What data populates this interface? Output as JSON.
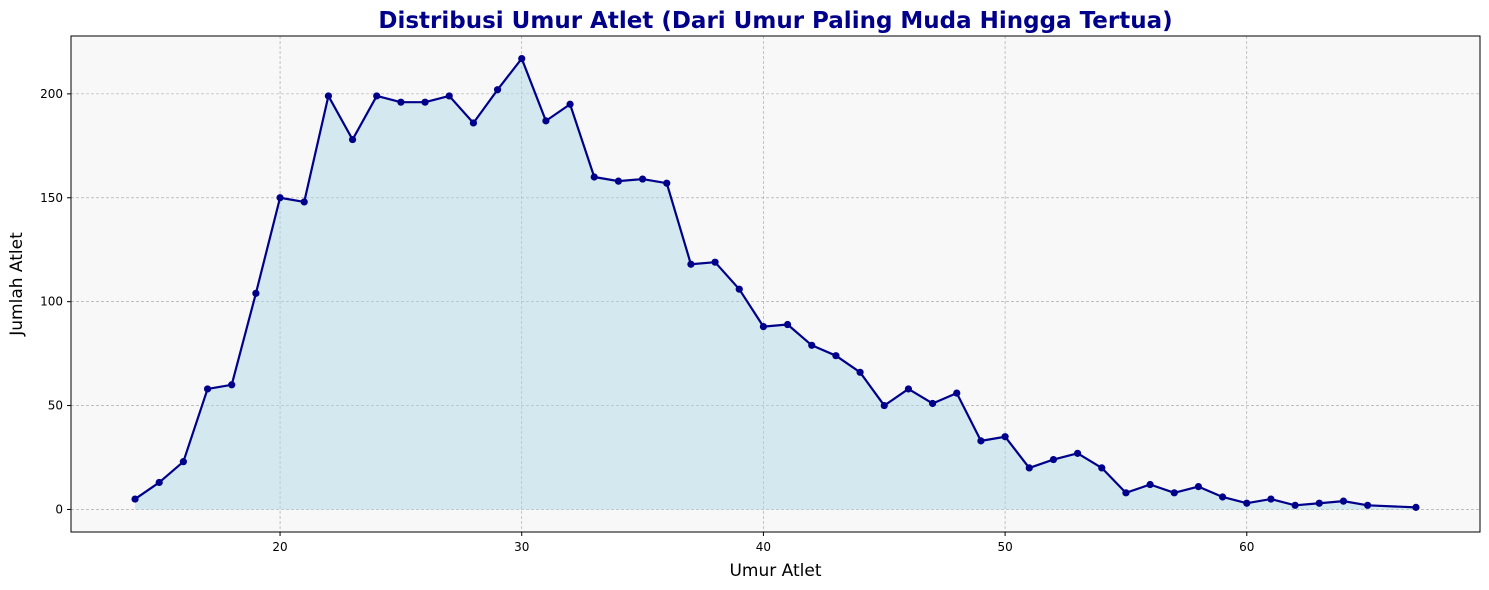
{
  "chart_data": {
    "type": "line",
    "title": "Distribusi Umur Atlet (Dari Umur Paling Muda Hingga Tertua)",
    "xlabel": "Umur Atlet",
    "ylabel": "Jumlah Atlet",
    "xlim": [
      11.35,
      69.65
    ],
    "ylim": [
      -10.85,
      227.85
    ],
    "xticks": [
      20,
      30,
      40,
      50,
      60
    ],
    "yticks": [
      0,
      50,
      100,
      150,
      200
    ],
    "xtick_labels": [
      "20",
      "30",
      "40",
      "50",
      "60"
    ],
    "ytick_labels": [
      "0",
      "50",
      "100",
      "150",
      "200"
    ],
    "grid": true,
    "fill_under_line": true,
    "series": [
      {
        "x": [
          14,
          15,
          16,
          17,
          18,
          19,
          20,
          21,
          22,
          23,
          24,
          25,
          26,
          27,
          28,
          29,
          30,
          31,
          32,
          33,
          34,
          35,
          36,
          37,
          38,
          39,
          40,
          41,
          42,
          43,
          44,
          45,
          46,
          47,
          48,
          49,
          50,
          51,
          52,
          53,
          54,
          55,
          56,
          57,
          58,
          59,
          60,
          61,
          62,
          63,
          64,
          65,
          67
        ],
        "values": [
          5,
          13,
          23,
          58,
          60,
          104,
          150,
          148,
          199,
          178,
          199,
          196,
          196,
          199,
          186,
          202,
          217,
          187,
          195,
          160,
          158,
          159,
          157,
          118,
          119,
          106,
          88,
          89,
          79,
          74,
          66,
          50,
          58,
          51,
          56,
          33,
          35,
          20,
          24,
          27,
          20,
          8,
          12,
          8,
          11,
          6,
          3,
          5,
          2,
          3,
          4,
          2,
          1
        ]
      }
    ],
    "colors": {
      "line": "#00008b",
      "marker": "#00008b",
      "fill": "#add8e6",
      "plot_background": "#f8f8f8",
      "grid": "#a0a0a0",
      "title": "#00008b"
    }
  }
}
